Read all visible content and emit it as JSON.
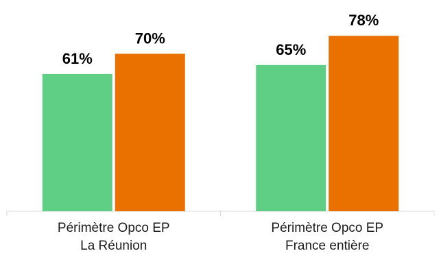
{
  "chart_data": {
    "type": "bar",
    "categories": [
      [
        "Périmètre Opco EP",
        "La Réunion"
      ],
      [
        "Périmètre Opco EP",
        "France entière"
      ]
    ],
    "series": [
      {
        "color": "#5ecf84",
        "values": [
          61,
          65
        ],
        "labels": [
          "61%",
          "65%"
        ]
      },
      {
        "color": "#ea7000",
        "values": [
          70,
          78
        ],
        "labels": [
          "70%",
          "78%"
        ]
      }
    ],
    "value_unit": "%",
    "ylim": [
      0,
      100
    ],
    "legend": "none",
    "grid": false,
    "title": "",
    "xlabel": "",
    "ylabel": ""
  }
}
